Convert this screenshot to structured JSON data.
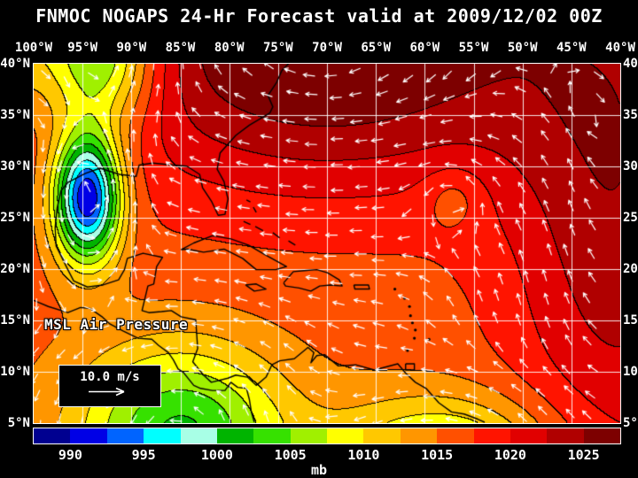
{
  "header": {
    "title": "FNMOC NOGAPS 24-Hr Forecast valid at 2009/12/02 00Z"
  },
  "axes": {
    "lon_labels": [
      "100°W",
      "95°W",
      "90°W",
      "85°W",
      "80°W",
      "75°W",
      "70°W",
      "65°W",
      "60°W",
      "55°W",
      "50°W",
      "45°W",
      "40°W"
    ],
    "lat_labels": [
      "40°N",
      "35°N",
      "30°N",
      "25°N",
      "20°N",
      "15°N",
      "10°N",
      "5°N"
    ]
  },
  "map": {
    "field_label": "MSL Air Pressure",
    "wind_scale_label": "10.0 m/s",
    "lon_range": [
      -100,
      -40
    ],
    "lat_range": [
      5,
      40
    ],
    "base_pressure": 1016,
    "pressure_centers": [
      {
        "lon": -94.5,
        "lat": 27,
        "amp": -27,
        "sx": 2.4,
        "sy": 4.4
      },
      {
        "lon": -93,
        "lat": 41,
        "amp": -15,
        "sx": 4,
        "sy": 5
      },
      {
        "lon": -104,
        "lat": 44,
        "amp": -9,
        "sx": 5,
        "sy": 6
      },
      {
        "lon": -70,
        "lat": 42,
        "amp": 12.5,
        "sx": 18,
        "sy": 10
      },
      {
        "lon": -40,
        "lat": 24,
        "amp": 8,
        "sx": 8,
        "sy": 18
      },
      {
        "lon": -85,
        "lat": 4,
        "amp": -14,
        "sx": 7.5,
        "sy": 6
      },
      {
        "lon": -57,
        "lat": 27,
        "amp": -3,
        "sx": 2.2,
        "sy": 2.2
      },
      {
        "lon": -58,
        "lat": 2,
        "amp": -10,
        "sx": 8,
        "sy": 4
      }
    ]
  },
  "colorbar": {
    "unit_label": "mb",
    "min": 987.5,
    "step": 2.5,
    "tick_labels": [
      "990",
      "995",
      "1000",
      "1005",
      "1010",
      "1015",
      "1020",
      "1025"
    ],
    "tick_boundary_indices": [
      1,
      3,
      5,
      7,
      9,
      11,
      13,
      15
    ],
    "colors": [
      "#000090",
      "#0000e6",
      "#0064ff",
      "#00ffff",
      "#a8ffe6",
      "#00b400",
      "#36e100",
      "#a0f000",
      "#ffff00",
      "#ffc800",
      "#ff9600",
      "#ff5000",
      "#ff1400",
      "#e10000",
      "#b00000",
      "#7d0000"
    ]
  }
}
